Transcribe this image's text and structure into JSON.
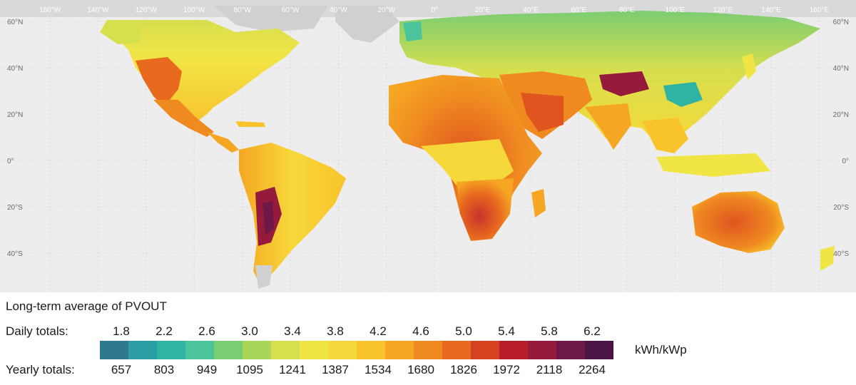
{
  "map": {
    "lon_labels": [
      "160°W",
      "140°W",
      "120°W",
      "100°W",
      "80°W",
      "60°W",
      "40°W",
      "20°W",
      "0°",
      "20°E",
      "40°E",
      "60°E",
      "80°E",
      "100°E",
      "120°E",
      "140°E",
      "160°E"
    ],
    "lat_labels_left": [
      "60°N",
      "40°N",
      "20°N",
      "0°",
      "20°S",
      "40°S"
    ],
    "lat_labels_right": [
      "60°N",
      "40°N",
      "20°N",
      "0°",
      "20°S",
      "40°S"
    ],
    "colors": {
      "background": "#ededed",
      "land_no_data": "#d0d0d0",
      "grid": "#c8c8c8",
      "header_band": "#d9d9d9"
    }
  },
  "legend": {
    "title": "Long-term average of PVOUT",
    "daily_label": "Daily totals:",
    "yearly_label": "Yearly totals:",
    "unit": "kWh/kWp",
    "daily_values": [
      "1.8",
      "2.2",
      "2.6",
      "3.0",
      "3.4",
      "3.8",
      "4.2",
      "4.6",
      "5.0",
      "5.4",
      "5.8",
      "6.2"
    ],
    "yearly_values": [
      "657",
      "803",
      "949",
      "1095",
      "1241",
      "1387",
      "1534",
      "1680",
      "1826",
      "1972",
      "2118",
      "2264"
    ],
    "colors": [
      "#2e7a8c",
      "#2a9da5",
      "#2fb3a3",
      "#4cc49b",
      "#7bcd72",
      "#a8d65a",
      "#d6df4e",
      "#f1e546",
      "#f7d83a",
      "#f8c32b",
      "#f5a623",
      "#ef8a21",
      "#e86a1f",
      "#d6421f",
      "#b81d2a",
      "#961a3b",
      "#6e1848",
      "#4a1545"
    ]
  }
}
